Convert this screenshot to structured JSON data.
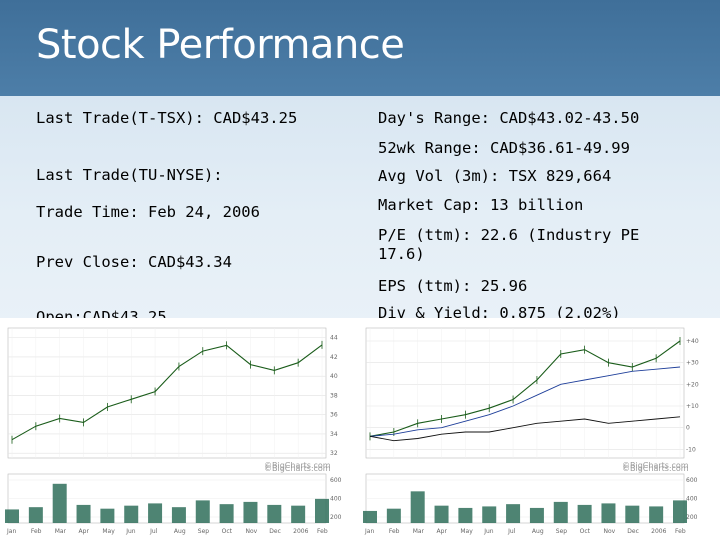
{
  "slide": {
    "title": "Stock Performance",
    "left": [
      "Last Trade(T-TSX): CAD$43.25",
      "Last Trade(TU-NYSE):",
      "Trade Time: Feb 24, 2006",
      "Prev Close: CAD$43.34",
      "Open:CAD$43.25"
    ],
    "right": [
      "Day's Range: CAD$43.02-43.50",
      "52wk Range: CAD$36.61-49.99",
      "Avg Vol (3m): TSX 829,664",
      "Market Cap: 13 billion",
      "P/E (ttm): 22.6 (Industry PE 17.6)",
      "EPS (ttm): 25.96",
      "Div & Yield: 0.875 (2.02%)"
    ],
    "watermark": "©BigCharts.com"
  },
  "chart_data": [
    {
      "type": "line",
      "name": "T-TSX price (left chart)",
      "x": [
        "Jan",
        "Feb",
        "Mar",
        "Apr",
        "May",
        "Jun",
        "Jul",
        "Aug",
        "Sep",
        "Oct",
        "Nov",
        "Dec",
        "2006",
        "Feb"
      ],
      "series": [
        {
          "values": [
            33.4,
            34.8,
            35.6,
            35.2,
            36.8,
            37.6,
            38.4,
            41.0,
            42.6,
            43.2,
            41.2,
            40.6,
            41.4,
            43.25
          ]
        }
      ],
      "y_ticks": [
        32,
        34,
        36,
        38,
        40,
        42,
        44
      ],
      "ylim": [
        31.5,
        45
      ],
      "volume": {
        "y_ticks": [
          "600",
          "400",
          "200"
        ],
        "values": [
          180,
          210,
          520,
          240,
          190,
          230,
          260,
          210,
          300,
          250,
          280,
          240,
          230,
          320
        ]
      },
      "grid": true
    },
    {
      "type": "line",
      "name": "TU-NYSE vs index (right chart)",
      "x": [
        "Jan",
        "Feb",
        "Mar",
        "Apr",
        "May",
        "Jun",
        "Jul",
        "Aug",
        "Sep",
        "Oct",
        "Nov",
        "Dec",
        "2006",
        "Feb"
      ],
      "series": [
        {
          "values": [
            -4,
            -2,
            2,
            4,
            6,
            9,
            13,
            22,
            34,
            36,
            30,
            28,
            32,
            40
          ]
        },
        {
          "values": [
            -4,
            -3,
            -1,
            0,
            3,
            6,
            10,
            15,
            20,
            22,
            24,
            26,
            27,
            28
          ]
        },
        {
          "values": [
            -4,
            -6,
            -5,
            -3,
            -2,
            -2,
            0,
            2,
            3,
            4,
            2,
            3,
            4,
            5
          ]
        }
      ],
      "y_ticks": [
        "+40",
        "+30",
        "+20",
        "+10",
        "0",
        "-10"
      ],
      "ylim": [
        -14,
        46
      ],
      "volume": {
        "y_ticks": [
          "600",
          "400",
          "200"
        ],
        "values": [
          160,
          190,
          420,
          230,
          200,
          220,
          250,
          200,
          280,
          240,
          260,
          230,
          220,
          300
        ]
      },
      "grid": true
    }
  ]
}
